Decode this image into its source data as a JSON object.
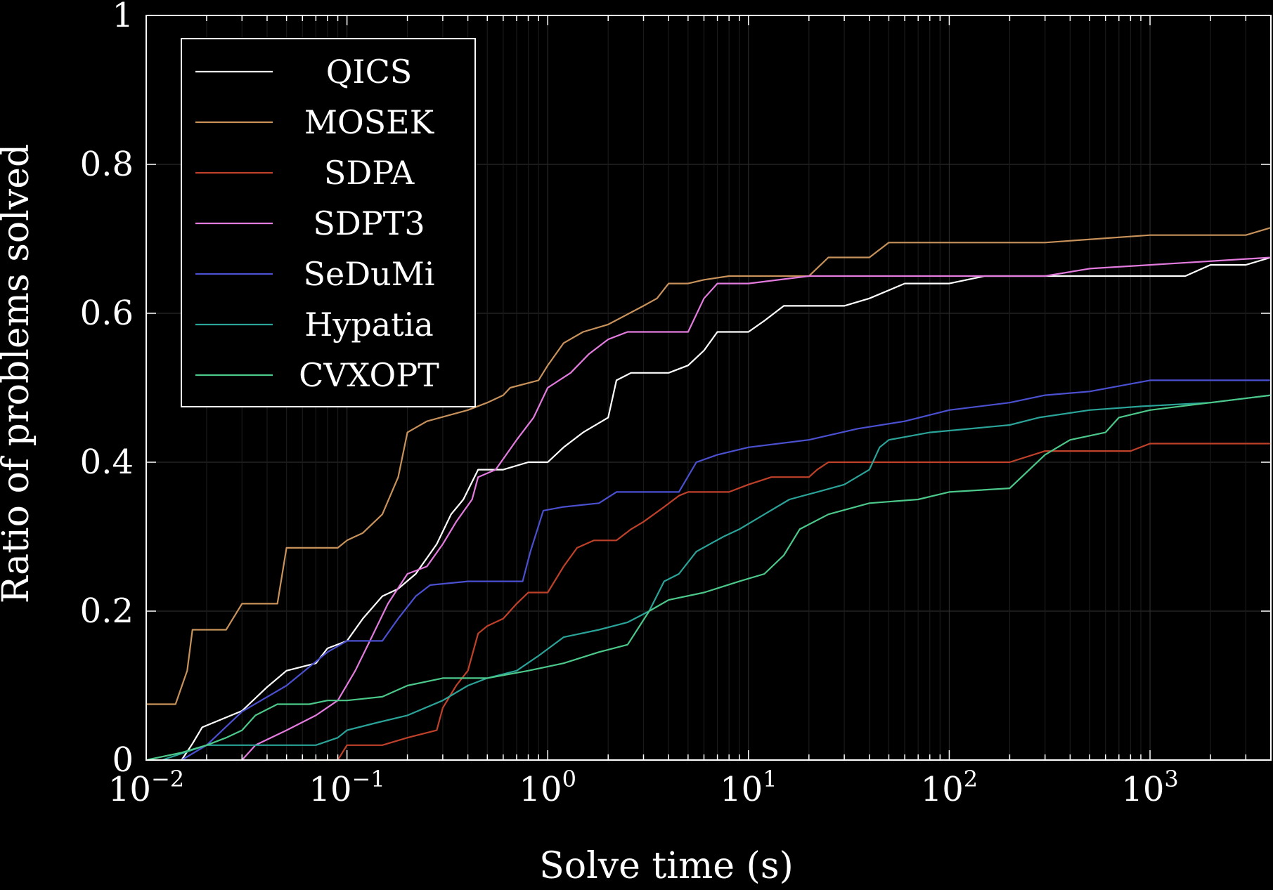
{
  "chart_data": {
    "type": "line",
    "xlabel": "Solve time (s)",
    "ylabel": "Ratio of problems solved",
    "xscale": "log",
    "xlim": [
      0.01,
      4000
    ],
    "ylim": [
      0,
      1
    ],
    "grid": true,
    "legend_position": "top-left",
    "background": "#000000",
    "y_ticks": [
      {
        "value": 0,
        "label": "0"
      },
      {
        "value": 0.2,
        "label": "0.2"
      },
      {
        "value": 0.4,
        "label": "0.4"
      },
      {
        "value": 0.6,
        "label": "0.6"
      },
      {
        "value": 0.8,
        "label": "0.8"
      },
      {
        "value": 1,
        "label": "1"
      }
    ],
    "x_ticks": [
      {
        "value": 0.01,
        "base": "10",
        "exp": "−2"
      },
      {
        "value": 0.1,
        "base": "10",
        "exp": "−1"
      },
      {
        "value": 1,
        "base": "10",
        "exp": "0"
      },
      {
        "value": 10,
        "base": "10",
        "exp": "1"
      },
      {
        "value": 100,
        "base": "10",
        "exp": "2"
      },
      {
        "value": 1000,
        "base": "10",
        "exp": "3"
      }
    ],
    "series": [
      {
        "name": "QICS",
        "color": "#ffffff",
        "points": [
          [
            0.015,
            0
          ],
          [
            0.017,
            0.022
          ],
          [
            0.019,
            0.044
          ],
          [
            0.03,
            0.066
          ],
          [
            0.04,
            0.098
          ],
          [
            0.05,
            0.12
          ],
          [
            0.07,
            0.13
          ],
          [
            0.08,
            0.15
          ],
          [
            0.1,
            0.16
          ],
          [
            0.12,
            0.19
          ],
          [
            0.15,
            0.22
          ],
          [
            0.18,
            0.23
          ],
          [
            0.22,
            0.25
          ],
          [
            0.28,
            0.29
          ],
          [
            0.33,
            0.33
          ],
          [
            0.38,
            0.35
          ],
          [
            0.45,
            0.39
          ],
          [
            0.6,
            0.39
          ],
          [
            0.8,
            0.4
          ],
          [
            1.0,
            0.4
          ],
          [
            1.2,
            0.42
          ],
          [
            1.5,
            0.44
          ],
          [
            2.0,
            0.46
          ],
          [
            2.2,
            0.51
          ],
          [
            2.6,
            0.52
          ],
          [
            4.0,
            0.52
          ],
          [
            5.0,
            0.53
          ],
          [
            6.0,
            0.55
          ],
          [
            7.0,
            0.575
          ],
          [
            10,
            0.575
          ],
          [
            12,
            0.59
          ],
          [
            15,
            0.61
          ],
          [
            30,
            0.61
          ],
          [
            40,
            0.62
          ],
          [
            60,
            0.64
          ],
          [
            100,
            0.64
          ],
          [
            150,
            0.65
          ],
          [
            300,
            0.65
          ],
          [
            1500,
            0.65
          ],
          [
            2000,
            0.665
          ],
          [
            3000,
            0.665
          ],
          [
            4000,
            0.675
          ]
        ]
      },
      {
        "name": "MOSEK",
        "color": "#c8925a",
        "points": [
          [
            0.01,
            0.075
          ],
          [
            0.014,
            0.075
          ],
          [
            0.016,
            0.12
          ],
          [
            0.017,
            0.175
          ],
          [
            0.025,
            0.175
          ],
          [
            0.03,
            0.21
          ],
          [
            0.045,
            0.21
          ],
          [
            0.05,
            0.285
          ],
          [
            0.09,
            0.285
          ],
          [
            0.1,
            0.295
          ],
          [
            0.12,
            0.305
          ],
          [
            0.15,
            0.33
          ],
          [
            0.18,
            0.38
          ],
          [
            0.2,
            0.44
          ],
          [
            0.25,
            0.455
          ],
          [
            0.4,
            0.47
          ],
          [
            0.5,
            0.48
          ],
          [
            0.6,
            0.49
          ],
          [
            0.65,
            0.5
          ],
          [
            0.9,
            0.51
          ],
          [
            1.0,
            0.53
          ],
          [
            1.2,
            0.56
          ],
          [
            1.5,
            0.575
          ],
          [
            2.0,
            0.585
          ],
          [
            3.0,
            0.61
          ],
          [
            3.5,
            0.62
          ],
          [
            4.0,
            0.64
          ],
          [
            5.0,
            0.64
          ],
          [
            6.0,
            0.645
          ],
          [
            8.0,
            0.65
          ],
          [
            20,
            0.65
          ],
          [
            25,
            0.675
          ],
          [
            40,
            0.675
          ],
          [
            50,
            0.695
          ],
          [
            300,
            0.695
          ],
          [
            1000,
            0.705
          ],
          [
            3000,
            0.705
          ],
          [
            4000,
            0.715
          ]
        ]
      },
      {
        "name": "SDPA",
        "color": "#c0412a",
        "points": [
          [
            0.06,
            0
          ],
          [
            0.09,
            0
          ],
          [
            0.1,
            0.02
          ],
          [
            0.15,
            0.02
          ],
          [
            0.2,
            0.03
          ],
          [
            0.28,
            0.04
          ],
          [
            0.3,
            0.07
          ],
          [
            0.35,
            0.1
          ],
          [
            0.4,
            0.12
          ],
          [
            0.45,
            0.17
          ],
          [
            0.5,
            0.18
          ],
          [
            0.6,
            0.19
          ],
          [
            0.7,
            0.21
          ],
          [
            0.8,
            0.225
          ],
          [
            1.0,
            0.225
          ],
          [
            1.2,
            0.26
          ],
          [
            1.4,
            0.285
          ],
          [
            1.7,
            0.295
          ],
          [
            2.2,
            0.295
          ],
          [
            2.6,
            0.31
          ],
          [
            3.0,
            0.32
          ],
          [
            3.8,
            0.34
          ],
          [
            4.5,
            0.355
          ],
          [
            5.0,
            0.36
          ],
          [
            8.0,
            0.36
          ],
          [
            10,
            0.37
          ],
          [
            13,
            0.38
          ],
          [
            20,
            0.38
          ],
          [
            22,
            0.39
          ],
          [
            25,
            0.4
          ],
          [
            200,
            0.4
          ],
          [
            300,
            0.415
          ],
          [
            800,
            0.415
          ],
          [
            1000,
            0.425
          ],
          [
            4000,
            0.425
          ]
        ]
      },
      {
        "name": "SDPT3",
        "color": "#e37bdf",
        "points": [
          [
            0.03,
            0
          ],
          [
            0.035,
            0.02
          ],
          [
            0.05,
            0.04
          ],
          [
            0.07,
            0.06
          ],
          [
            0.09,
            0.08
          ],
          [
            0.11,
            0.12
          ],
          [
            0.13,
            0.16
          ],
          [
            0.16,
            0.21
          ],
          [
            0.2,
            0.25
          ],
          [
            0.25,
            0.26
          ],
          [
            0.3,
            0.29
          ],
          [
            0.35,
            0.32
          ],
          [
            0.42,
            0.35
          ],
          [
            0.45,
            0.38
          ],
          [
            0.55,
            0.39
          ],
          [
            0.7,
            0.43
          ],
          [
            0.85,
            0.46
          ],
          [
            1.0,
            0.5
          ],
          [
            1.3,
            0.52
          ],
          [
            1.6,
            0.545
          ],
          [
            2.0,
            0.565
          ],
          [
            2.5,
            0.575
          ],
          [
            5.0,
            0.575
          ],
          [
            6.0,
            0.62
          ],
          [
            7.0,
            0.64
          ],
          [
            10,
            0.64
          ],
          [
            20,
            0.65
          ],
          [
            300,
            0.65
          ],
          [
            500,
            0.66
          ],
          [
            1000,
            0.665
          ],
          [
            4000,
            0.675
          ]
        ]
      },
      {
        "name": "SeDuMi",
        "color": "#4a50d0",
        "points": [
          [
            0.015,
            0
          ],
          [
            0.02,
            0.02
          ],
          [
            0.03,
            0.065
          ],
          [
            0.05,
            0.1
          ],
          [
            0.08,
            0.145
          ],
          [
            0.1,
            0.16
          ],
          [
            0.15,
            0.16
          ],
          [
            0.18,
            0.19
          ],
          [
            0.22,
            0.22
          ],
          [
            0.26,
            0.235
          ],
          [
            0.4,
            0.24
          ],
          [
            0.75,
            0.24
          ],
          [
            0.82,
            0.28
          ],
          [
            0.95,
            0.335
          ],
          [
            1.2,
            0.34
          ],
          [
            1.8,
            0.345
          ],
          [
            2.2,
            0.36
          ],
          [
            4.5,
            0.36
          ],
          [
            5.5,
            0.4
          ],
          [
            7.0,
            0.41
          ],
          [
            10,
            0.42
          ],
          [
            20,
            0.43
          ],
          [
            35,
            0.445
          ],
          [
            60,
            0.455
          ],
          [
            100,
            0.47
          ],
          [
            200,
            0.48
          ],
          [
            300,
            0.49
          ],
          [
            500,
            0.495
          ],
          [
            1000,
            0.51
          ],
          [
            4000,
            0.51
          ]
        ]
      },
      {
        "name": "Hypatia",
        "color": "#2aa398",
        "points": [
          [
            0.012,
            0
          ],
          [
            0.02,
            0.02
          ],
          [
            0.035,
            0.02
          ],
          [
            0.05,
            0.02
          ],
          [
            0.07,
            0.02
          ],
          [
            0.09,
            0.03
          ],
          [
            0.1,
            0.04
          ],
          [
            0.14,
            0.05
          ],
          [
            0.2,
            0.06
          ],
          [
            0.3,
            0.08
          ],
          [
            0.4,
            0.1
          ],
          [
            0.5,
            0.11
          ],
          [
            0.7,
            0.12
          ],
          [
            0.9,
            0.14
          ],
          [
            1.2,
            0.165
          ],
          [
            1.8,
            0.175
          ],
          [
            2.5,
            0.185
          ],
          [
            3.2,
            0.2
          ],
          [
            3.8,
            0.24
          ],
          [
            4.5,
            0.25
          ],
          [
            5.5,
            0.28
          ],
          [
            7.5,
            0.3
          ],
          [
            9.0,
            0.31
          ],
          [
            12,
            0.33
          ],
          [
            16,
            0.35
          ],
          [
            22,
            0.36
          ],
          [
            30,
            0.37
          ],
          [
            40,
            0.39
          ],
          [
            45,
            0.42
          ],
          [
            50,
            0.43
          ],
          [
            80,
            0.44
          ],
          [
            200,
            0.45
          ],
          [
            280,
            0.46
          ],
          [
            500,
            0.47
          ],
          [
            900,
            0.475
          ],
          [
            2000,
            0.48
          ],
          [
            4000,
            0.49
          ]
        ]
      },
      {
        "name": "CVXOPT",
        "color": "#4bc88a",
        "points": [
          [
            0.01,
            0
          ],
          [
            0.015,
            0.01
          ],
          [
            0.02,
            0.02
          ],
          [
            0.025,
            0.03
          ],
          [
            0.03,
            0.04
          ],
          [
            0.035,
            0.06
          ],
          [
            0.045,
            0.075
          ],
          [
            0.065,
            0.075
          ],
          [
            0.08,
            0.08
          ],
          [
            0.1,
            0.08
          ],
          [
            0.15,
            0.085
          ],
          [
            0.2,
            0.1
          ],
          [
            0.3,
            0.11
          ],
          [
            0.5,
            0.11
          ],
          [
            0.8,
            0.12
          ],
          [
            1.2,
            0.13
          ],
          [
            1.8,
            0.145
          ],
          [
            2.5,
            0.155
          ],
          [
            3.2,
            0.2
          ],
          [
            4.0,
            0.215
          ],
          [
            6.0,
            0.225
          ],
          [
            9.0,
            0.24
          ],
          [
            12,
            0.25
          ],
          [
            15,
            0.275
          ],
          [
            18,
            0.31
          ],
          [
            25,
            0.33
          ],
          [
            40,
            0.345
          ],
          [
            70,
            0.35
          ],
          [
            100,
            0.36
          ],
          [
            200,
            0.365
          ],
          [
            300,
            0.41
          ],
          [
            400,
            0.43
          ],
          [
            600,
            0.44
          ],
          [
            700,
            0.46
          ],
          [
            1000,
            0.47
          ],
          [
            4000,
            0.49
          ]
        ]
      }
    ]
  }
}
